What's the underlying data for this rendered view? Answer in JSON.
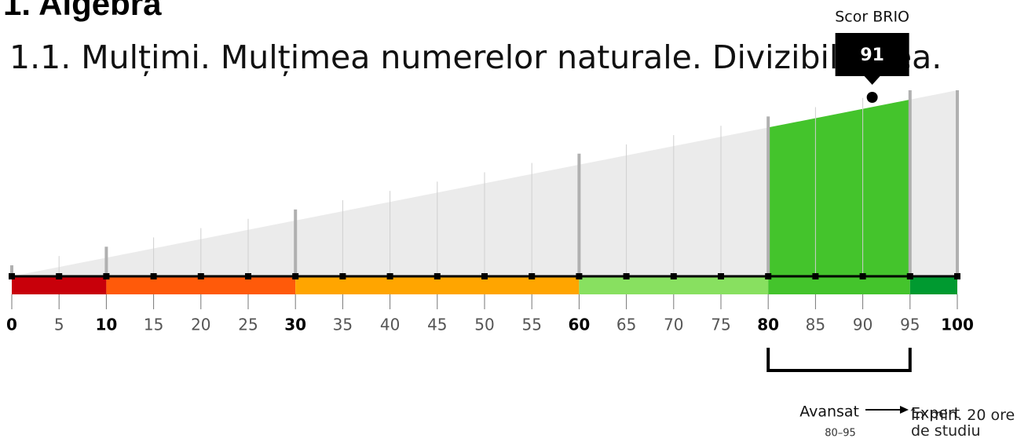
{
  "chart_data": {
    "type": "gauge",
    "title": "1. Algebra",
    "subtitle": "1.1. Mulțimi. Mulțimea numerelor naturale. Divizibilitatea.",
    "xlim": [
      0,
      100
    ],
    "xticks": [
      0,
      5,
      10,
      15,
      20,
      25,
      30,
      35,
      40,
      45,
      50,
      55,
      60,
      65,
      70,
      75,
      80,
      85,
      90,
      95,
      100
    ],
    "bold_ticks": [
      0,
      10,
      30,
      60,
      80,
      100
    ],
    "bands": [
      {
        "from": 0,
        "to": 10,
        "color": "#c8000a"
      },
      {
        "from": 10,
        "to": 30,
        "color": "#ff5a0a"
      },
      {
        "from": 30,
        "to": 60,
        "color": "#ffa500"
      },
      {
        "from": 60,
        "to": 80,
        "color": "#88e060"
      },
      {
        "from": 80,
        "to": 95,
        "color": "#44c42c"
      },
      {
        "from": 95,
        "to": 100,
        "color": "#009a30"
      }
    ],
    "score": {
      "label": "Scor BRIO",
      "value": 91
    },
    "highlight": {
      "from": 80,
      "to": 95,
      "color": "#44c42c",
      "name": "Avansat",
      "range_label": "80–95",
      "next": "Expert",
      "next_note": "în min. 20 ore de studiu"
    }
  }
}
